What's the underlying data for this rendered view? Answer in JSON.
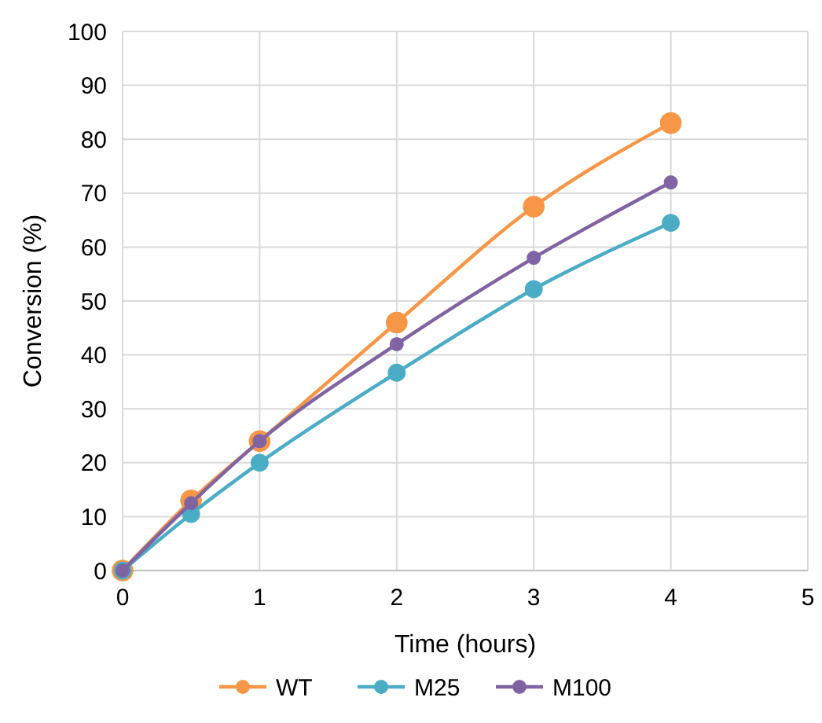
{
  "chart_data": {
    "type": "line",
    "xlabel": "Time (hours)",
    "ylabel": "Conversion (%)",
    "x": [
      0,
      0.5,
      1,
      2,
      3,
      4
    ],
    "series": [
      {
        "name": "WT",
        "color": "#f79646",
        "values": [
          0,
          13,
          24,
          46,
          67.5,
          83
        ]
      },
      {
        "name": "M25",
        "color": "#4bacc6",
        "values": [
          0,
          10.5,
          20,
          36.7,
          52.2,
          64.5
        ]
      },
      {
        "name": "M100",
        "color": "#8064a2",
        "values": [
          0,
          12.5,
          24,
          42,
          58,
          72
        ]
      }
    ],
    "xlim": [
      0,
      5
    ],
    "xticks": [
      0,
      1,
      2,
      3,
      4,
      5
    ],
    "ylim": [
      0,
      100
    ],
    "yticks": [
      0,
      10,
      20,
      30,
      40,
      50,
      60,
      70,
      80,
      90,
      100
    ],
    "grid": true,
    "legend": "bottom",
    "marker": "circle",
    "line_style": "solid"
  }
}
